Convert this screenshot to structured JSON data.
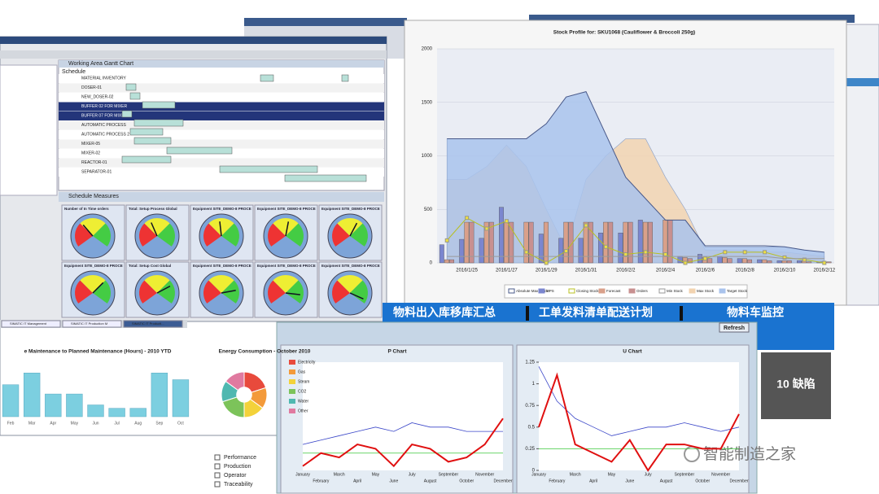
{
  "scheduler": {
    "title": "Working Area Gantt Chart",
    "tab": "Schedule",
    "rows": [
      "MATERIAL INVENTORY",
      "DOSER-01",
      "NEW_DOSER-02",
      "BUFFER 02 FOR MIXER",
      "BUFFER 07 FOR MIXER",
      "AUTOMATIC PROCESS",
      "AUTOMATIC PROCESS 2",
      "MIXER-05",
      "MIXER-02",
      "REACTOR-01",
      "SEPARATOR-01"
    ],
    "measures_title": "Schedule Measures",
    "gauges": [
      "Number of In Time orders",
      "Total: Setup Process Global",
      "Equipment SITE_DEMO-8 PROCE",
      "Equipment SITE_DEMO-8 PROCE",
      "Equipment SITE_DEMO-8 PROCE",
      "Equipment SITE_DEMO-8 PROCE",
      "Total: Setup Cost Global",
      "Equipment SITE_DEMO-8 PROCE",
      "Equipment SITE_DEMO-8 PROCE",
      "Equipment SITE_DEMO-8 PROCE"
    ]
  },
  "taskbar": [
    "SIMATIC IT Management",
    "SIMATIC IT Production M",
    "SIMATIC IT Producti..."
  ],
  "nav": [
    "物料出入库移库汇总",
    "工单发料清单配送计划",
    "物料车监控"
  ],
  "refresh": "Refresh",
  "defects": "10 缺陷",
  "menu": [
    "Performance",
    "Production",
    "Operator",
    "Traceability"
  ],
  "watermark": "智能制造之家",
  "chart_data": [
    {
      "type": "combo",
      "title": "Stock Profile for: SKU1068 (Cauliflower & Broccoli 250g)",
      "categories": [
        null,
        "2016/1/25",
        null,
        "2016/1/27",
        null,
        "2016/1/29",
        null,
        "2016/1/31",
        null,
        "2016/2/2",
        null,
        "2016/2/4",
        null,
        "2016/2/6",
        null,
        "2016/2/8",
        null,
        "2016/2/10",
        null,
        "2016/2/12"
      ],
      "ylim": [
        0,
        2000
      ],
      "yticks": [
        0,
        500,
        1000,
        1500,
        2000
      ],
      "grid": true,
      "series": [
        {
          "name": "Absolute Max Stock",
          "kind": "line",
          "color": "#4a5a8a",
          "values": [
            1160,
            1160,
            1160,
            1160,
            1160,
            1300,
            1550,
            1600,
            1200,
            800,
            600,
            400,
            400,
            160,
            160,
            160,
            160,
            150,
            120,
            100
          ]
        },
        {
          "name": "MPS",
          "kind": "bar",
          "color": "#7b86cf",
          "values": [
            170,
            220,
            230,
            520,
            0,
            270,
            230,
            230,
            280,
            280,
            400,
            0,
            60,
            80,
            60,
            40,
            30,
            20,
            20,
            10
          ]
        },
        {
          "name": "Closing Stock",
          "kind": "line",
          "color": "#b8c020",
          "values": [
            210,
            420,
            320,
            390,
            100,
            0,
            110,
            350,
            150,
            80,
            100,
            80,
            0,
            40,
            100,
            100,
            100,
            50,
            30,
            0
          ]
        },
        {
          "name": "Forecast",
          "kind": "bar",
          "color": "#d9a08a",
          "values": [
            30,
            380,
            380,
            380,
            380,
            380,
            380,
            380,
            380,
            380,
            380,
            400,
            50,
            50,
            50,
            40,
            30,
            20,
            20,
            10
          ]
        },
        {
          "name": "Orders",
          "kind": "bar",
          "color": "#c89090",
          "values": [
            30,
            380,
            380,
            380,
            380,
            0,
            380,
            380,
            380,
            380,
            380,
            400,
            40,
            40,
            40,
            30,
            20,
            20,
            10,
            10
          ]
        },
        {
          "name": "Min Stock",
          "kind": "line",
          "color": "#9a9a9a",
          "values": [
            60,
            60,
            60,
            60,
            60,
            60,
            60,
            60,
            60,
            60,
            60,
            60,
            60,
            60,
            60,
            60,
            60,
            40,
            40,
            40
          ]
        },
        {
          "name": "Max Stock",
          "kind": "area",
          "color": "#f2d3b0",
          "values": [
            780,
            780,
            900,
            1100,
            900,
            500,
            130,
            780,
            1000,
            1160,
            1160,
            800,
            500,
            120,
            120,
            120,
            100,
            100,
            80,
            60
          ]
        },
        {
          "name": "Target Stock",
          "kind": "area",
          "color": "#a9c3ec",
          "values": [
            1160,
            1160,
            1160,
            1160,
            1160,
            1300,
            1550,
            1600,
            1200,
            800,
            600,
            400,
            400,
            150,
            150,
            150,
            150,
            150,
            120,
            100
          ]
        }
      ]
    },
    {
      "type": "bar",
      "title": "e Maintenance to Planned Maintenance (Hours) - 2010 YTD",
      "categories": [
        "Feb",
        "Mar",
        "Apr",
        "May",
        "Jun",
        "Jul",
        "Aug",
        "Sep",
        "Oct"
      ],
      "values": [
        38,
        52,
        27,
        27,
        14,
        10,
        10,
        52,
        44
      ],
      "color": "#7ccfe0",
      "ylim": [
        0,
        60
      ]
    },
    {
      "type": "pie",
      "title": "Energy Consumption - October 2010",
      "categories": [
        "Electricity",
        "Gas",
        "Steam",
        "CO2",
        "Water",
        "Other"
      ],
      "values": [
        20,
        15,
        15,
        20,
        15,
        15
      ],
      "colors": [
        "#e84a3c",
        "#f39a3a",
        "#f3d23a",
        "#7cc35a",
        "#4fb8b0",
        "#e07aa0"
      ]
    },
    {
      "type": "line",
      "title": "P Chart",
      "categories": [
        "January",
        "February",
        "March",
        "April",
        "May",
        "June",
        "July",
        "August",
        "September",
        "October",
        "November",
        "December"
      ],
      "ylim": [
        0,
        1.25
      ],
      "series": [
        {
          "color": "#3a46c8",
          "values": [
            0.3,
            0.35,
            0.4,
            0.45,
            0.5,
            0.45,
            0.55,
            0.5,
            0.5,
            0.45,
            0.45,
            0.45
          ]
        },
        {
          "color": "#3cc83c",
          "values": [
            0.2,
            0.2,
            0.2,
            0.2,
            0.2,
            0.2,
            0.2,
            0.2,
            0.2,
            0.2,
            0.2,
            0.2
          ]
        },
        {
          "color": "#e01010",
          "values": [
            0.05,
            0.2,
            0.15,
            0.3,
            0.25,
            0.05,
            0.3,
            0.25,
            0.1,
            0.15,
            0.3,
            0.6
          ]
        }
      ]
    },
    {
      "type": "line",
      "title": "U Chart",
      "categories": [
        "January",
        "February",
        "March",
        "April",
        "May",
        "June",
        "July",
        "August",
        "September",
        "October",
        "November",
        "December"
      ],
      "ylim": [
        0,
        1.25
      ],
      "yticks": [
        0,
        0.25,
        0.5,
        0.75,
        1,
        1.25
      ],
      "series": [
        {
          "color": "#3a46c8",
          "values": [
            1.2,
            0.8,
            0.6,
            0.5,
            0.4,
            0.45,
            0.5,
            0.5,
            0.55,
            0.5,
            0.45,
            0.5
          ]
        },
        {
          "color": "#3cc83c",
          "values": [
            0.25,
            0.25,
            0.25,
            0.25,
            0.25,
            0.25,
            0.25,
            0.25,
            0.25,
            0.25,
            0.25,
            0.25
          ]
        },
        {
          "color": "#e01010",
          "values": [
            0.5,
            1.1,
            0.3,
            0.2,
            0.1,
            0.35,
            0,
            0.3,
            0.3,
            0.25,
            0.25,
            0.65
          ]
        }
      ]
    }
  ]
}
